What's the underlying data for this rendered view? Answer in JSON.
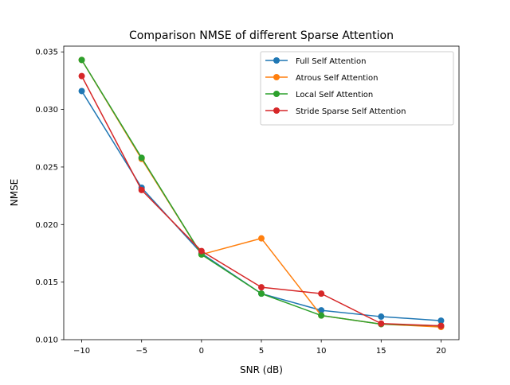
{
  "chart_data": {
    "type": "line",
    "title": "Comparison NMSE of different Sparse Attention",
    "xlabel": "SNR (dB)",
    "ylabel": "NMSE",
    "xlim": [
      -11.5,
      21.5
    ],
    "ylim": [
      0.01,
      0.0355
    ],
    "x": [
      -10,
      -5,
      0,
      5,
      10,
      15,
      20
    ],
    "xticks": [
      -10,
      -5,
      0,
      5,
      10,
      15,
      20
    ],
    "xtick_labels": [
      "−10",
      "−5",
      "0",
      "5",
      "10",
      "15",
      "20"
    ],
    "yticks": [
      0.01,
      0.015,
      0.02,
      0.025,
      0.03,
      0.035
    ],
    "ytick_labels": [
      "0.010",
      "0.015",
      "0.020",
      "0.025",
      "0.030",
      "0.035"
    ],
    "grid": false,
    "legend_position": "top-right",
    "series": [
      {
        "name": "Full Self Attention",
        "color": "#1f77b4",
        "values": [
          0.0316,
          0.0232,
          0.0175,
          0.014,
          0.01255,
          0.012,
          0.01165
        ]
      },
      {
        "name": "Atrous Self Attention",
        "color": "#ff7f0e",
        "values": [
          0.0343,
          0.0257,
          0.0174,
          0.0188,
          0.0121,
          0.01135,
          0.0111
        ]
      },
      {
        "name": "Local Self Attention",
        "color": "#2ca02c",
        "values": [
          0.0343,
          0.0258,
          0.0174,
          0.014,
          0.0121,
          0.01135,
          0.0112
        ]
      },
      {
        "name": "Stride Sparse Self Attention",
        "color": "#d62728",
        "values": [
          0.0329,
          0.023,
          0.0177,
          0.01455,
          0.014,
          0.0114,
          0.0112
        ]
      }
    ]
  }
}
